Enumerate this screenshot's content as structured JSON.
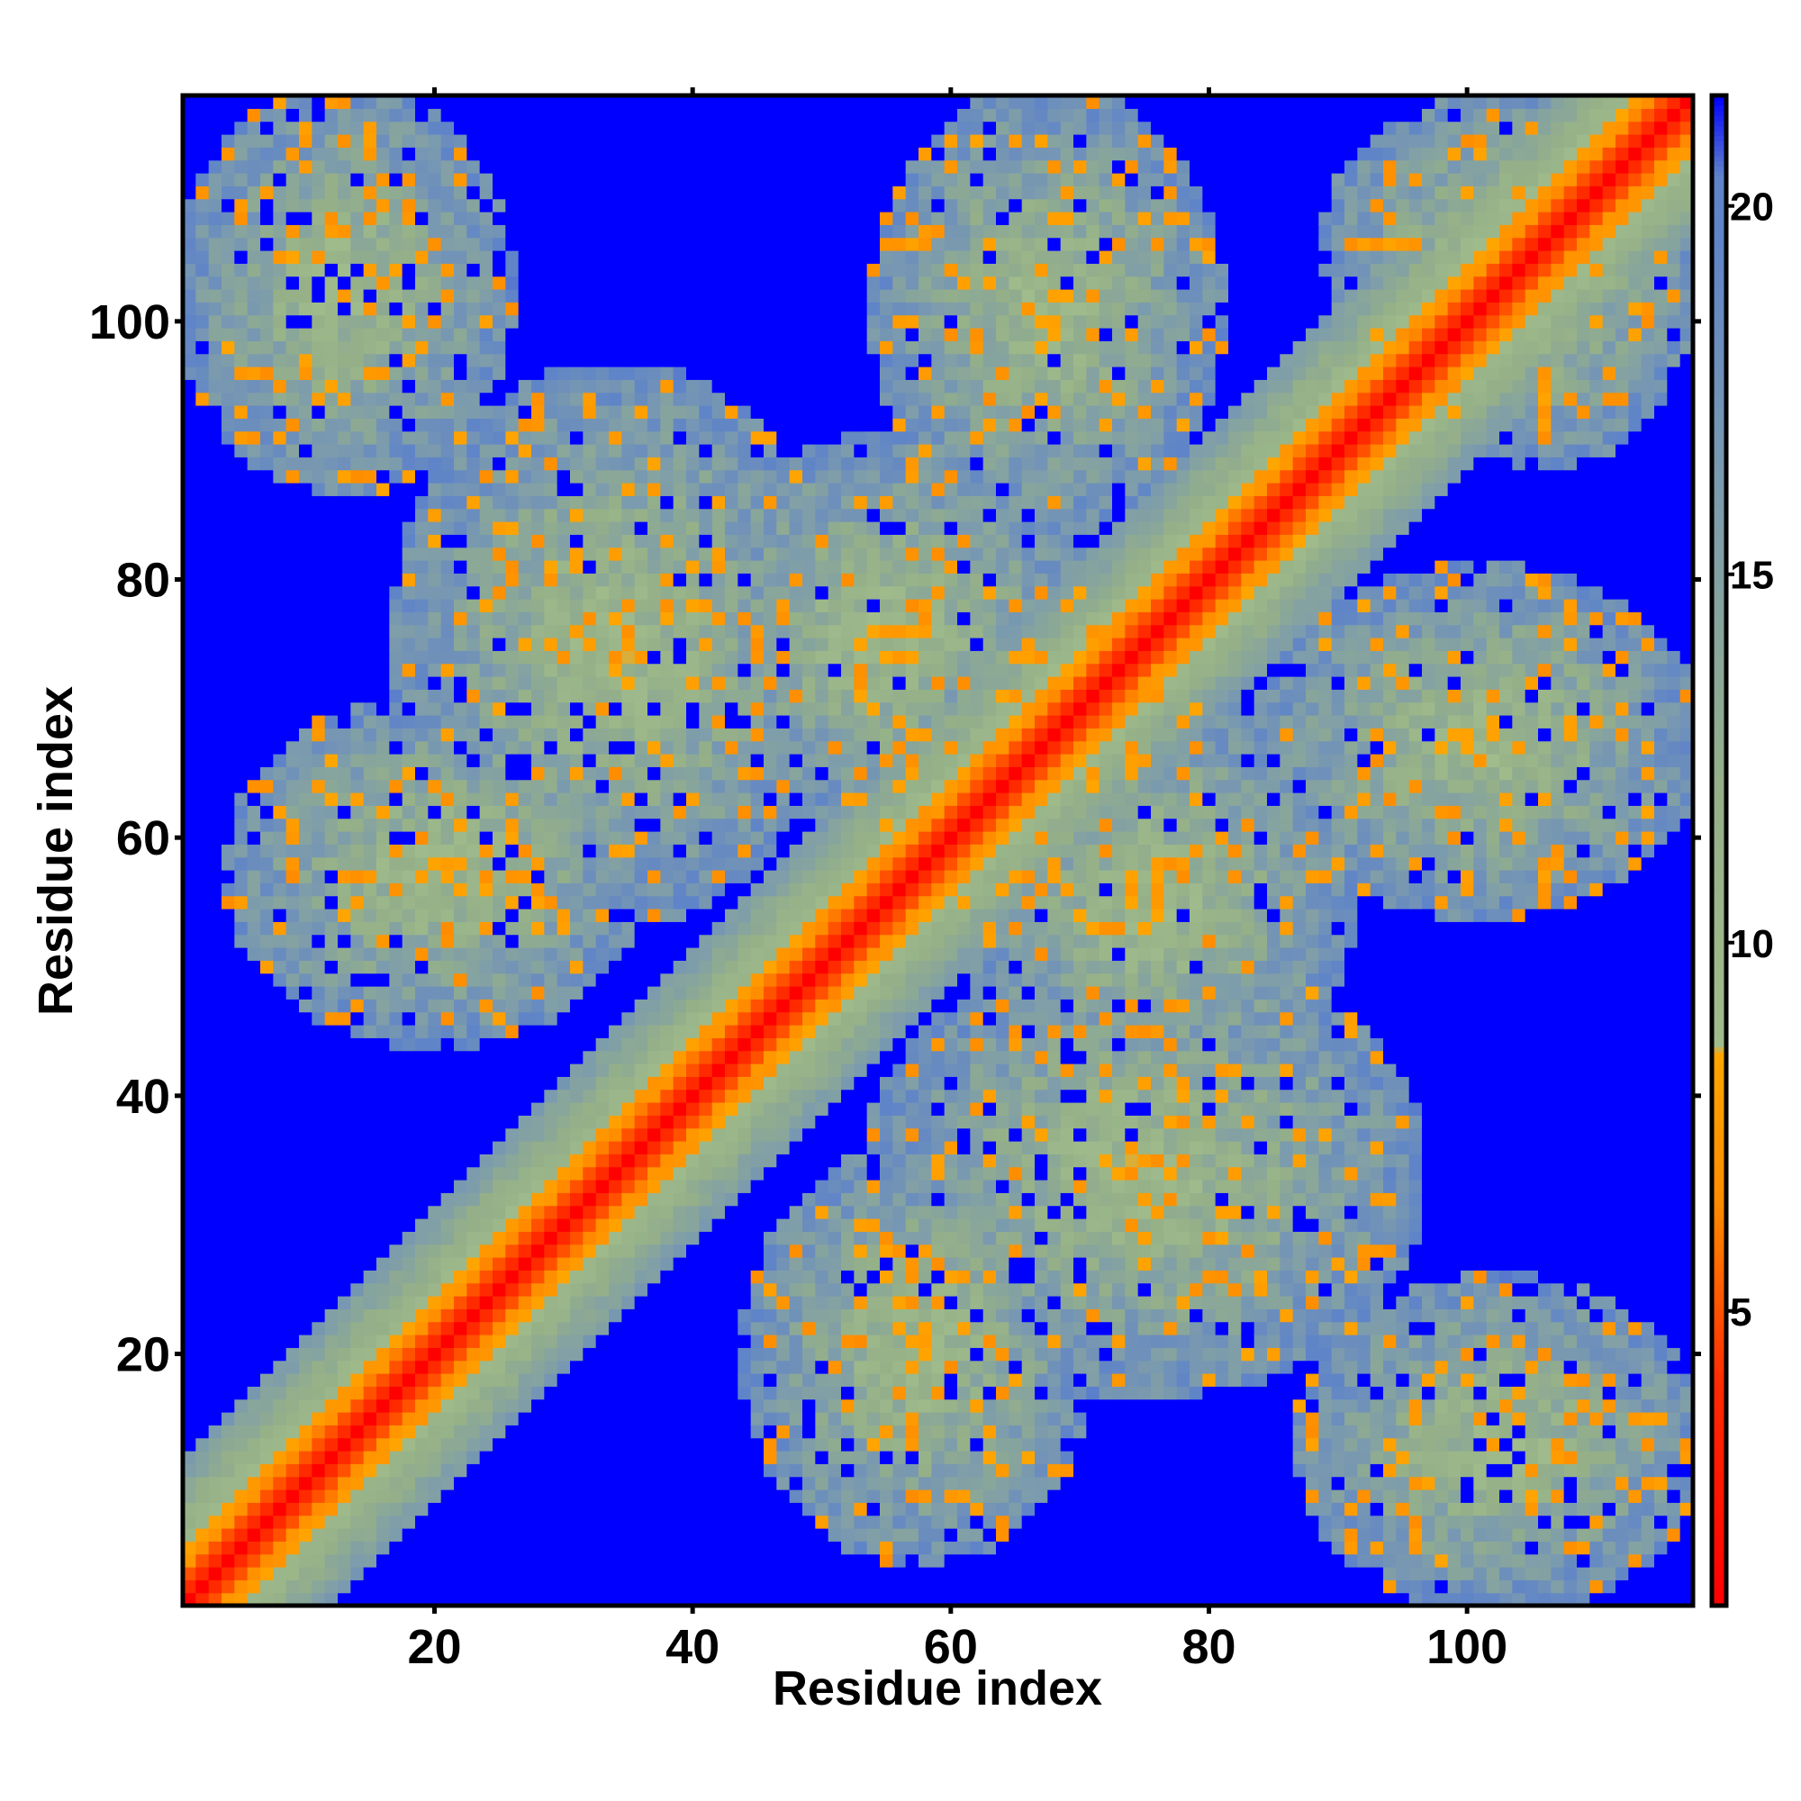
{
  "chart_data": {
    "type": "heatmap",
    "title": "",
    "xlabel": "Residue index",
    "ylabel": "Residue index",
    "n_residues": 117,
    "xlim": [
      1,
      117
    ],
    "ylim": [
      1,
      117
    ],
    "x_ticks": [
      20,
      40,
      60,
      80,
      100
    ],
    "y_ticks": [
      20,
      40,
      60,
      80,
      100
    ],
    "colorbar": {
      "range": [
        1,
        21.5
      ],
      "ticks": [
        5,
        10,
        15,
        20
      ],
      "stops": [
        {
          "value": 1,
          "color": "#ff0000"
        },
        {
          "value": 4,
          "color": "#ff2a00"
        },
        {
          "value": 6.5,
          "color": "#ff8c00"
        },
        {
          "value": 8.5,
          "color": "#ffa500"
        },
        {
          "value": 8.6,
          "color": "#a0bc8c"
        },
        {
          "value": 12,
          "color": "#95b088"
        },
        {
          "value": 16,
          "color": "#7d9cac"
        },
        {
          "value": 19.6,
          "color": "#5f84c8"
        },
        {
          "value": 20.4,
          "color": "#5f84c8"
        },
        {
          "value": 21.5,
          "color": "#0000ff"
        }
      ]
    },
    "cmap_description": "pairwise distance map: red (near) on diagonal, orange, grey-green, grey-blue, blue (far)",
    "structure": {
      "diagonal_bands": true,
      "off_diagonal_contact_blocks": [
        {
          "i_range": [
            1,
            25
          ],
          "j_range": [
            88,
            117
          ]
        },
        {
          "i_range": [
            18,
            50
          ],
          "j_range": [
            55,
            95
          ]
        },
        {
          "i_range": [
            5,
            35
          ],
          "j_range": [
            45,
            70
          ]
        },
        {
          "i_range": [
            55,
            80
          ],
          "j_range": [
            85,
            117
          ]
        },
        {
          "i_range": [
            40,
            70
          ],
          "j_range": [
            62,
            90
          ]
        },
        {
          "i_range": [
            90,
            117
          ],
          "j_range": [
            95,
            117
          ]
        },
        {
          "i_range": [
            85,
            110
          ],
          "j_range": [
            40,
            70
          ]
        }
      ]
    }
  }
}
